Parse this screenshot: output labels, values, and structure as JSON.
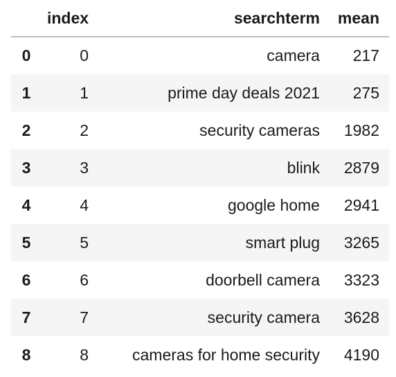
{
  "table": {
    "columns": [
      "",
      "index",
      "searchterm",
      "mean"
    ],
    "rows": [
      {
        "row_label": "0",
        "index": "0",
        "searchterm": "camera",
        "mean": "217"
      },
      {
        "row_label": "1",
        "index": "1",
        "searchterm": "prime day deals 2021",
        "mean": "275"
      },
      {
        "row_label": "2",
        "index": "2",
        "searchterm": "security cameras",
        "mean": "1982"
      },
      {
        "row_label": "3",
        "index": "3",
        "searchterm": "blink",
        "mean": "2879"
      },
      {
        "row_label": "4",
        "index": "4",
        "searchterm": "google home",
        "mean": "2941"
      },
      {
        "row_label": "5",
        "index": "5",
        "searchterm": "smart plug",
        "mean": "3265"
      },
      {
        "row_label": "6",
        "index": "6",
        "searchterm": "doorbell camera",
        "mean": "3323"
      },
      {
        "row_label": "7",
        "index": "7",
        "searchterm": "security camera",
        "mean": "3628"
      },
      {
        "row_label": "8",
        "index": "8",
        "searchterm": "cameras for home security",
        "mean": "4190"
      }
    ]
  },
  "colors": {
    "stripe": "#f5f5f5",
    "header_border": "#bdbdbd",
    "text": "#1a1a1a"
  }
}
